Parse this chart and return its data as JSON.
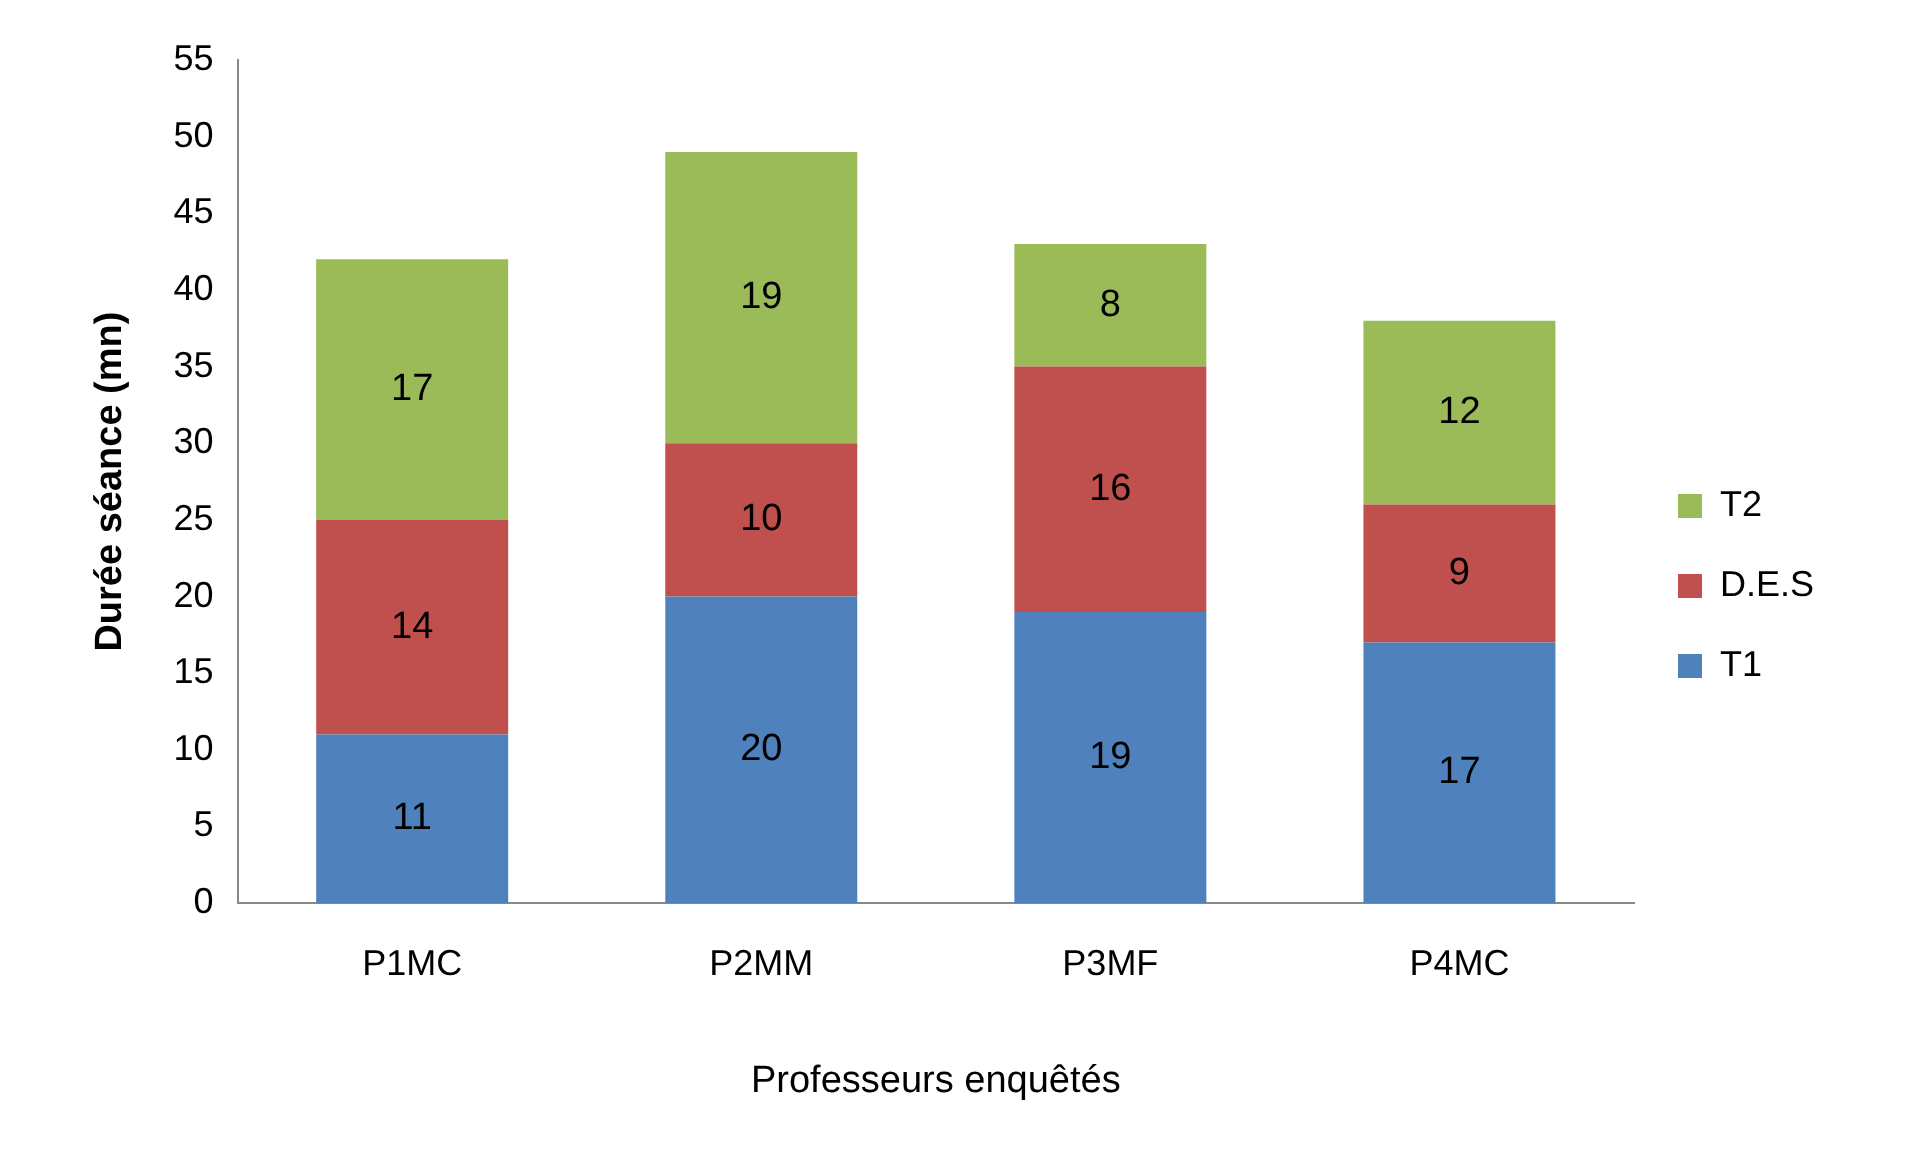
{
  "chart_data": {
    "type": "bar",
    "stacked": true,
    "xlabel": "Professeurs enquêtés",
    "ylabel": "Durée séance (mn)",
    "categories": [
      "P1MC",
      "P2MM",
      "P3MF",
      "P4MC"
    ],
    "series": [
      {
        "name": "T1",
        "color": "#4f81bd",
        "values": [
          11,
          20,
          19,
          17
        ]
      },
      {
        "name": "D.E.S",
        "color": "#c0504d",
        "values": [
          14,
          10,
          16,
          9
        ]
      },
      {
        "name": "T2",
        "color": "#9bbb59",
        "values": [
          17,
          19,
          8,
          12
        ]
      }
    ],
    "ylim": [
      0,
      55
    ],
    "yticks": [
      0,
      5,
      10,
      15,
      20,
      25,
      30,
      35,
      40,
      45,
      50,
      55
    ],
    "grid": false,
    "legend": "right",
    "data_labels": true
  }
}
